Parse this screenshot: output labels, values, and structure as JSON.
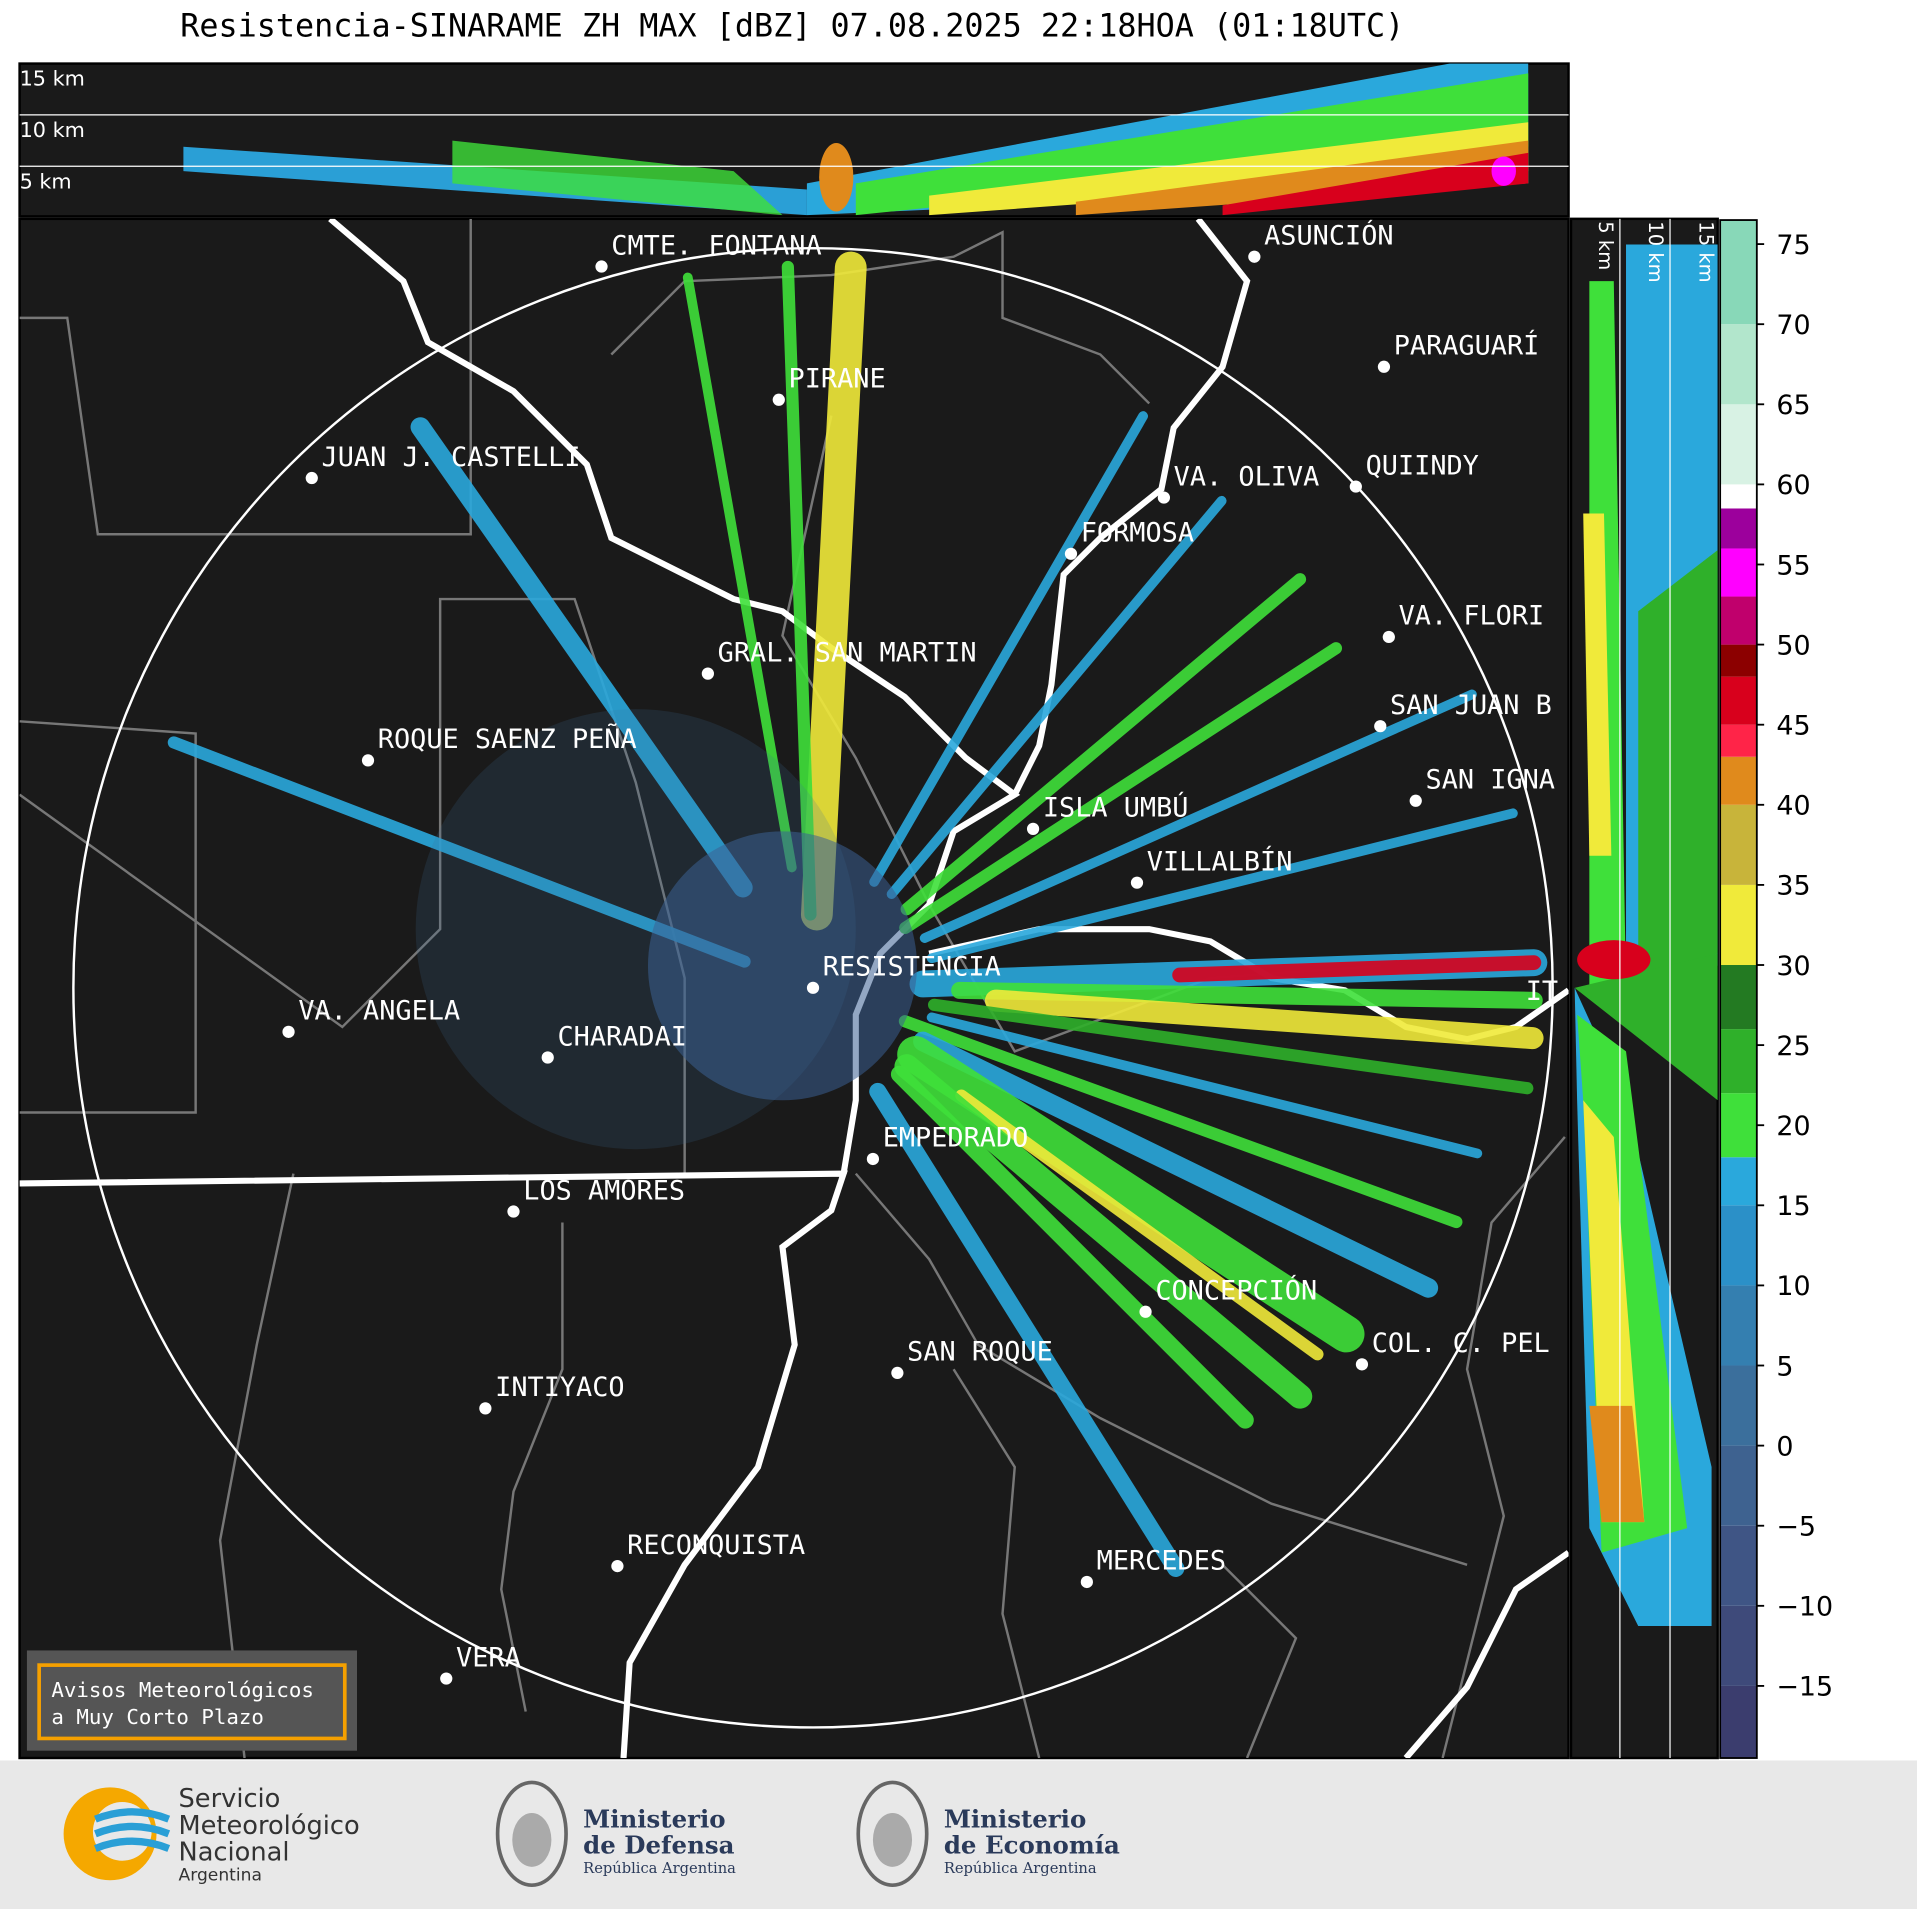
{
  "title": "Resistencia-SINARAME ZH MAX [dBZ] 07.08.2025 22:18HOA (01:18UTC)",
  "top_panel": {
    "height_labels": [
      "15 km",
      "10 km",
      "5 km"
    ]
  },
  "side_panel": {
    "height_labels": [
      "5 km",
      "10 km",
      "15 km"
    ]
  },
  "cities": [
    "CMTE. FONTANA",
    "ASUNCIÓN",
    "PARAGUARÍ",
    "PIRANE",
    "JUAN J. CASTELLI",
    "VA. OLIVA",
    "QUIINDY",
    "FORMOSA",
    "VA. FLORI",
    "GRAL. SAN MARTIN",
    "SAN JUAN B",
    "ROQUE SAENZ PEÑA",
    "SAN IGNA",
    "ISLA UMBÚ",
    "VILLALBÍN",
    "RESISTENCIA",
    "VA. ANGELA",
    "CHARADAI",
    "IT",
    "EMPEDRADO",
    "LOS AMORES",
    "CONCEPCIÓN",
    "SAN ROQUE",
    "COL. C. PEL",
    "INTIYACO",
    "RECONQUISTA",
    "MERCEDES",
    "VERA"
  ],
  "colorbar": {
    "ylim": [
      -19.5,
      76.5
    ],
    "ticks": [
      75,
      70,
      65,
      60,
      55,
      50,
      45,
      40,
      35,
      30,
      25,
      20,
      15,
      10,
      5,
      0,
      {
        "value": -5,
        "label": "−5"
      },
      {
        "value": -10,
        "label": "−10"
      },
      {
        "value": -15,
        "label": "−15"
      }
    ],
    "bands": [
      {
        "from": -19.5,
        "to": -15,
        "color": "#3b3d6e"
      },
      {
        "from": -15,
        "to": -10,
        "color": "#3e4a7a"
      },
      {
        "from": -10,
        "to": -5,
        "color": "#3f5585"
      },
      {
        "from": -5,
        "to": 0,
        "color": "#3e6290"
      },
      {
        "from": 0,
        "to": 5,
        "color": "#3b6f9c"
      },
      {
        "from": 5,
        "to": 10,
        "color": "#347fb0"
      },
      {
        "from": 10,
        "to": 15,
        "color": "#2b90c8"
      },
      {
        "from": 15,
        "to": 18,
        "color": "#2aa8dc"
      },
      {
        "from": 18,
        "to": 22,
        "color": "#3fe03a"
      },
      {
        "from": 22,
        "to": 26,
        "color": "#2fb02a"
      },
      {
        "from": 26,
        "to": 30,
        "color": "#237a22"
      },
      {
        "from": 30,
        "to": 35,
        "color": "#f0ea3a"
      },
      {
        "from": 35,
        "to": 40,
        "color": "#c8b43a"
      },
      {
        "from": 40,
        "to": 43,
        "color": "#e08a1c"
      },
      {
        "from": 43,
        "to": 45,
        "color": "#ff2448"
      },
      {
        "from": 45,
        "to": 48,
        "color": "#d8001c"
      },
      {
        "from": 48,
        "to": 50,
        "color": "#8c0000"
      },
      {
        "from": 50,
        "to": 53,
        "color": "#c0006c"
      },
      {
        "from": 53,
        "to": 56,
        "color": "#ff00ff"
      },
      {
        "from": 56,
        "to": 58.5,
        "color": "#9c009c"
      },
      {
        "from": 58.5,
        "to": 60,
        "color": "#ffffff"
      },
      {
        "from": 60,
        "to": 65,
        "color": "#d8f2e4"
      },
      {
        "from": 65,
        "to": 70,
        "color": "#b2e6cc"
      },
      {
        "from": 70,
        "to": 76.5,
        "color": "#88d8b8"
      }
    ]
  },
  "notice": {
    "lines": [
      "Avisos Meteorológicos",
      "a Muy Corto Plazo"
    ]
  },
  "logos": {
    "smn": [
      "Servicio",
      "Meteorológico",
      "Nacional",
      "Argentina"
    ],
    "defensa": [
      "Ministerio",
      "de Defensa",
      "República Argentina"
    ],
    "economia": [
      "Ministerio",
      "de Economía",
      "República Argentina"
    ]
  }
}
